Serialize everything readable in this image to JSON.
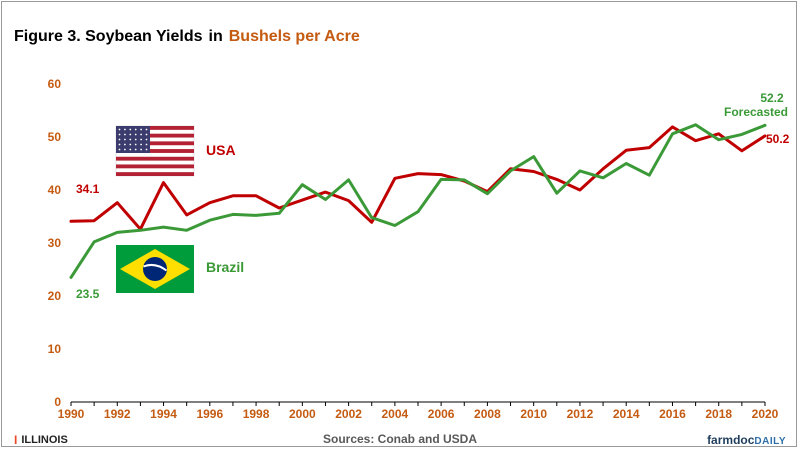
{
  "header": {
    "title_main": "Figure 3. Soybean Yields",
    "title_in": "in",
    "title_accent": "Bushels per Acre"
  },
  "footer": {
    "university": "ILLINOIS",
    "sources": "Sources: Conab and USDA",
    "brand_main": "farmdoc",
    "brand_daily": "DAILY"
  },
  "colors": {
    "usa": "#c00000",
    "brazil": "#3b9a37",
    "axis_labels": "#c55a11",
    "title_accent": "#c55a11"
  },
  "chart_data": {
    "type": "line",
    "title": "Figure 3. Soybean Yields in Bushels per Acre",
    "xlabel": "",
    "ylabel": "",
    "x": [
      1990,
      1991,
      1992,
      1993,
      1994,
      1995,
      1996,
      1997,
      1998,
      1999,
      2000,
      2001,
      2002,
      2003,
      2004,
      2005,
      2006,
      2007,
      2008,
      2009,
      2010,
      2011,
      2012,
      2013,
      2014,
      2015,
      2016,
      2017,
      2018,
      2019,
      2020
    ],
    "xticks": [
      1990,
      1992,
      1994,
      1996,
      1998,
      2000,
      2002,
      2004,
      2006,
      2008,
      2010,
      2012,
      2014,
      2016,
      2018,
      2020
    ],
    "ylim": [
      0,
      60
    ],
    "yticks": [
      0,
      10,
      20,
      30,
      40,
      50,
      60
    ],
    "grid": false,
    "series": [
      {
        "name": "USA",
        "color": "#c00000",
        "values": [
          34.1,
          34.2,
          37.6,
          32.6,
          41.4,
          35.3,
          37.6,
          38.9,
          38.9,
          36.6,
          38.1,
          39.6,
          38.0,
          33.9,
          42.2,
          43.1,
          42.9,
          41.7,
          39.7,
          44.0,
          43.5,
          42.0,
          40.0,
          44.0,
          47.5,
          48.0,
          51.9,
          49.3,
          50.6,
          47.4,
          50.2
        ],
        "labels": {
          "start": "34.1",
          "end": "50.2"
        }
      },
      {
        "name": "Brazil",
        "color": "#3b9a37",
        "values": [
          23.5,
          30.2,
          32.0,
          32.4,
          33.0,
          32.4,
          34.3,
          35.4,
          35.2,
          35.6,
          41.0,
          38.2,
          41.9,
          34.8,
          33.3,
          35.9,
          42.0,
          41.9,
          39.3,
          43.6,
          46.3,
          39.4,
          43.6,
          42.3,
          45.0,
          42.8,
          50.6,
          52.3,
          49.5,
          50.5,
          52.2
        ],
        "labels": {
          "start": "23.5",
          "end": "52.2",
          "end_note": "Forecasted"
        }
      }
    ]
  }
}
